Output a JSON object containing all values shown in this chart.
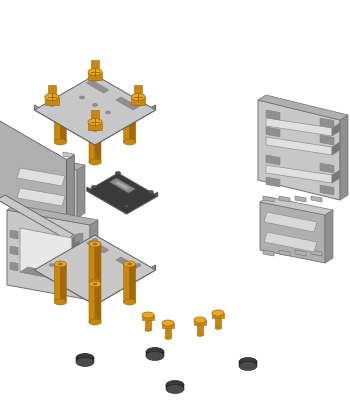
{
  "bg_color": "#ffffff",
  "GL": "#c8c8c8",
  "GM": "#b0b0b0",
  "GD": "#909090",
  "GDK": "#787878",
  "GOLD_L": "#e8a820",
  "GOLD_M": "#c88810",
  "GOLD_D": "#a06808",
  "BK": "#3a3a3a",
  "BKD": "#252525",
  "BKL": "#505050",
  "figsize": [
    3.5,
    4.03
  ],
  "dpi": 100
}
